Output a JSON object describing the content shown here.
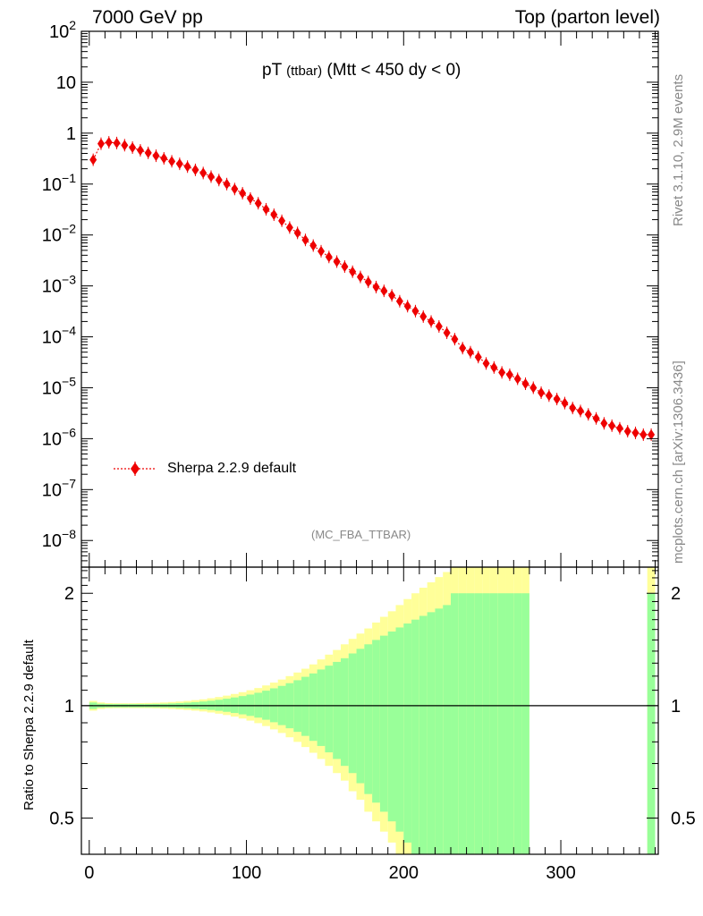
{
  "header": {
    "left": "7000 GeV pp",
    "right": "Top (parton level)"
  },
  "title": {
    "main": "pT",
    "sub": "(ttbar)",
    "rest": "(Mtt < 450 dy < 0)"
  },
  "side_labels": {
    "rivet": "Rivet 3.1.10,  2.9M events",
    "mcplots": "mcplots.cern.ch [arXiv:1306.3436]"
  },
  "analysis_tag": "(MC_FBA_TTBAR)",
  "legend": {
    "entry": "Sherpa 2.2.9 default"
  },
  "colors": {
    "series": "#ee0000",
    "band_outer": "#ffff99",
    "band_inner": "#99ff99"
  },
  "chart_data": [
    {
      "type": "scatter",
      "name": "main",
      "yscale": "log",
      "ylim": [
        3e-09,
        100
      ],
      "xlim": [
        -5,
        362
      ],
      "y_tick_labels": [
        "10^2",
        "10",
        "1",
        "10^-1",
        "10^-2",
        "10^-3",
        "10^-4",
        "10^-5",
        "10^-6",
        "10^-7",
        "10^-8"
      ],
      "legend_position": "bottom-left",
      "series": [
        {
          "name": "Sherpa 2.2.9 default",
          "x": [
            2.5,
            7.5,
            12.5,
            17.5,
            22.5,
            27.5,
            32.5,
            37.5,
            42.5,
            47.5,
            52.5,
            57.5,
            62.5,
            67.5,
            72.5,
            77.5,
            82.5,
            87.5,
            92.5,
            97.5,
            102.5,
            107.5,
            112.5,
            117.5,
            122.5,
            127.5,
            132.5,
            137.5,
            142.5,
            147.5,
            152.5,
            157.5,
            162.5,
            167.5,
            172.5,
            177.5,
            182.5,
            187.5,
            192.5,
            197.5,
            202.5,
            207.5,
            212.5,
            217.5,
            222.5,
            227.5,
            232.5,
            237.5,
            242.5,
            247.5,
            252.5,
            257.5,
            262.5,
            267.5,
            272.5,
            277.5,
            282.5,
            287.5,
            292.5,
            297.5,
            302.5,
            307.5,
            312.5,
            317.5,
            322.5,
            327.5,
            332.5,
            337.5,
            342.5,
            347.5,
            352.5,
            357.5
          ],
          "y": [
            0.3,
            0.62,
            0.66,
            0.64,
            0.58,
            0.52,
            0.46,
            0.41,
            0.36,
            0.32,
            0.28,
            0.25,
            0.22,
            0.19,
            0.165,
            0.14,
            0.12,
            0.1,
            0.08,
            0.066,
            0.052,
            0.042,
            0.032,
            0.025,
            0.019,
            0.014,
            0.011,
            0.008,
            0.0062,
            0.0048,
            0.0037,
            0.003,
            0.0024,
            0.0019,
            0.0015,
            0.0012,
            0.00095,
            0.0008,
            0.00065,
            0.0005,
            0.0004,
            0.00032,
            0.00025,
            0.0002,
            0.00016,
            0.00012,
            9e-05,
            6e-05,
            5e-05,
            4e-05,
            3e-05,
            2.5e-05,
            2e-05,
            1.8e-05,
            1.5e-05,
            1.2e-05,
            1e-05,
            8e-06,
            7e-06,
            6e-06,
            5e-06,
            4e-06,
            3.5e-06,
            3e-06,
            2.5e-06,
            2e-06,
            1.8e-06,
            1.6e-06,
            1.4e-06,
            1.3e-06,
            1.2e-06,
            1.2e-06
          ]
        }
      ]
    },
    {
      "type": "area",
      "name": "ratio",
      "ylabel": "Ratio to Sherpa 2.2.9 default",
      "yscale": "log",
      "ylim": [
        0.4,
        2.35
      ],
      "xlim": [
        -5,
        362
      ],
      "y_ticks": [
        0.5,
        1,
        2
      ],
      "y_tick_labels": [
        "0.5",
        "1",
        "2"
      ],
      "x_ticks": [
        0,
        100,
        200,
        300
      ],
      "x_tick_labels": [
        "0",
        "100",
        "200",
        "300"
      ],
      "reference_line": 1,
      "bins": {
        "x_low": [
          0,
          5,
          10,
          15,
          20,
          25,
          30,
          35,
          40,
          45,
          50,
          55,
          60,
          65,
          70,
          75,
          80,
          85,
          90,
          95,
          100,
          105,
          110,
          115,
          120,
          125,
          130,
          135,
          140,
          145,
          150,
          155,
          160,
          165,
          170,
          175,
          180,
          185,
          190,
          195,
          200,
          205,
          210,
          215,
          220,
          225,
          230,
          235,
          240,
          245,
          250,
          255,
          260,
          265,
          270,
          275,
          355
        ],
        "x_high": [
          5,
          10,
          15,
          20,
          25,
          30,
          35,
          40,
          45,
          50,
          55,
          60,
          65,
          70,
          75,
          80,
          85,
          90,
          95,
          100,
          105,
          110,
          115,
          120,
          125,
          130,
          135,
          140,
          145,
          150,
          155,
          160,
          165,
          170,
          175,
          180,
          185,
          190,
          195,
          200,
          205,
          210,
          215,
          220,
          225,
          230,
          235,
          240,
          245,
          250,
          255,
          260,
          265,
          270,
          275,
          280,
          360
        ],
        "inner_lo": [
          0.98,
          0.988,
          0.99,
          0.99,
          0.99,
          0.99,
          0.99,
          0.99,
          0.99,
          0.989,
          0.988,
          0.986,
          0.984,
          0.981,
          0.978,
          0.974,
          0.969,
          0.963,
          0.956,
          0.948,
          0.939,
          0.929,
          0.917,
          0.903,
          0.887,
          0.87,
          0.851,
          0.83,
          0.805,
          0.78,
          0.75,
          0.72,
          0.69,
          0.66,
          0.62,
          0.58,
          0.55,
          0.52,
          0.49,
          0.46,
          0.43,
          0.4,
          0.37,
          0.34,
          0.3,
          0.27,
          0.1,
          0.1,
          0.1,
          0.1,
          0.1,
          0.1,
          0.1,
          0.1,
          0.1,
          0.1,
          0.1
        ],
        "inner_hi": [
          1.02,
          1.012,
          1.01,
          1.01,
          1.01,
          1.01,
          1.01,
          1.01,
          1.011,
          1.012,
          1.014,
          1.016,
          1.019,
          1.022,
          1.026,
          1.031,
          1.037,
          1.044,
          1.052,
          1.061,
          1.071,
          1.083,
          1.097,
          1.113,
          1.13,
          1.149,
          1.17,
          1.195,
          1.22,
          1.25,
          1.28,
          1.31,
          1.34,
          1.38,
          1.42,
          1.46,
          1.5,
          1.54,
          1.58,
          1.62,
          1.66,
          1.7,
          1.74,
          1.78,
          1.82,
          1.86,
          2.0,
          2.0,
          2.0,
          2.0,
          2.0,
          2.0,
          2.0,
          2.0,
          2.0,
          2.0,
          2.0
        ],
        "outer_lo": [
          0.97,
          0.98,
          0.984,
          0.985,
          0.985,
          0.985,
          0.985,
          0.985,
          0.984,
          0.982,
          0.98,
          0.977,
          0.974,
          0.97,
          0.965,
          0.959,
          0.952,
          0.944,
          0.935,
          0.924,
          0.912,
          0.898,
          0.882,
          0.864,
          0.845,
          0.823,
          0.8,
          0.775,
          0.748,
          0.72,
          0.69,
          0.66,
          0.63,
          0.59,
          0.56,
          0.52,
          0.49,
          0.46,
          0.43,
          0.4,
          0.37,
          0.34,
          0.31,
          0.28,
          0.25,
          0.22,
          0.1,
          0.1,
          0.1,
          0.1,
          0.1,
          0.1,
          0.1,
          0.1,
          0.1,
          0.1,
          0.1
        ],
        "outer_hi": [
          1.03,
          1.02,
          1.016,
          1.015,
          1.015,
          1.015,
          1.016,
          1.017,
          1.018,
          1.02,
          1.023,
          1.026,
          1.03,
          1.035,
          1.04,
          1.047,
          1.055,
          1.064,
          1.075,
          1.087,
          1.1,
          1.115,
          1.133,
          1.153,
          1.175,
          1.2,
          1.227,
          1.256,
          1.29,
          1.33,
          1.37,
          1.41,
          1.46,
          1.51,
          1.56,
          1.61,
          1.67,
          1.73,
          1.79,
          1.86,
          1.93,
          2.0,
          2.07,
          2.14,
          2.21,
          2.28,
          3.0,
          3.0,
          3.0,
          3.0,
          3.0,
          3.0,
          3.0,
          3.0,
          3.0,
          3.0,
          3.0
        ]
      }
    }
  ]
}
